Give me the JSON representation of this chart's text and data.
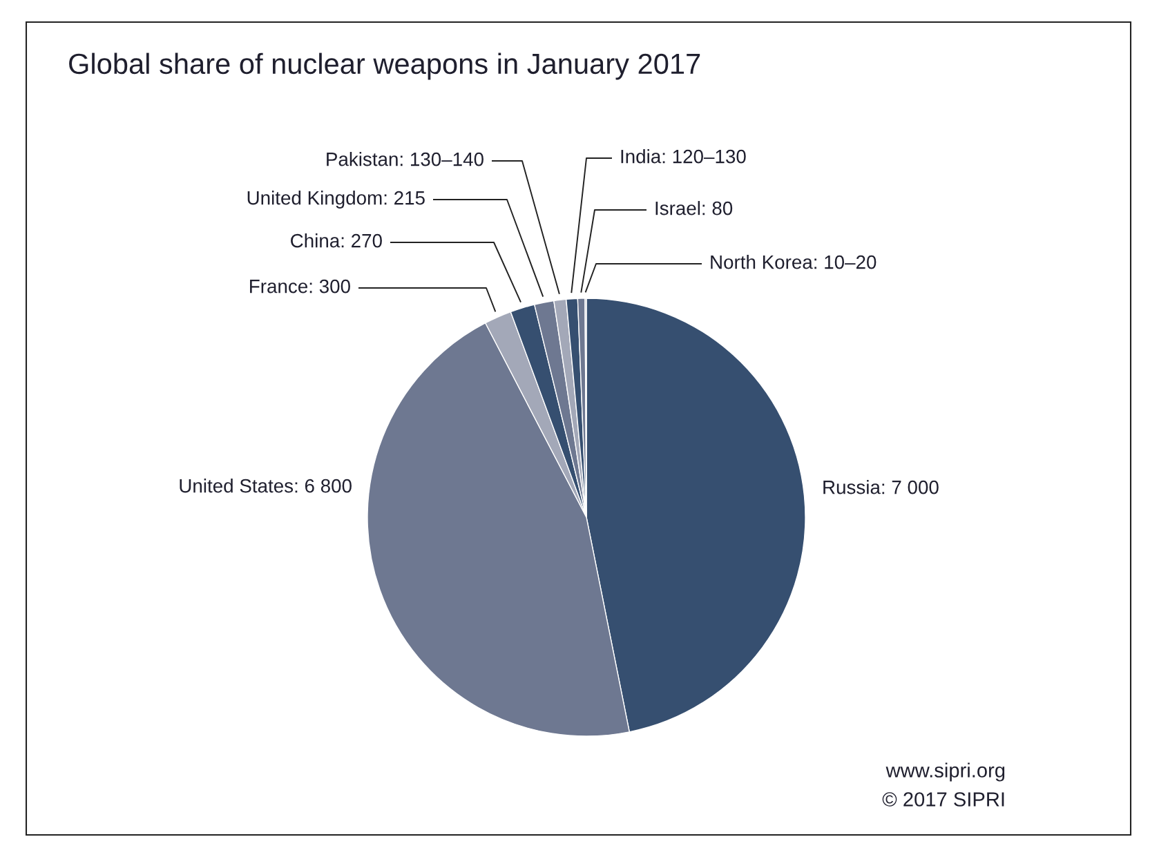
{
  "chart_data": {
    "type": "pie",
    "title": "Global share of nuclear weapons in January 2017",
    "categories": [
      "Russia",
      "United States",
      "France",
      "China",
      "United Kingdom",
      "Pakistan",
      "India",
      "Israel",
      "North Korea"
    ],
    "values": [
      7000,
      6800,
      300,
      270,
      215,
      135,
      125,
      80,
      15
    ],
    "value_labels": [
      "7 000",
      "6 800",
      "300",
      "270",
      "215",
      "130–140",
      "120–130",
      "80",
      "10–20"
    ],
    "colors": [
      "#364f70",
      "#6e7891",
      "#a3a8b8",
      "#364f70",
      "#6e7891",
      "#a3a8b8",
      "#364f70",
      "#6e7891",
      "#a3a8b8"
    ],
    "annotations": [
      "www.sipri.org",
      "© 2017 SIPRI"
    ]
  }
}
